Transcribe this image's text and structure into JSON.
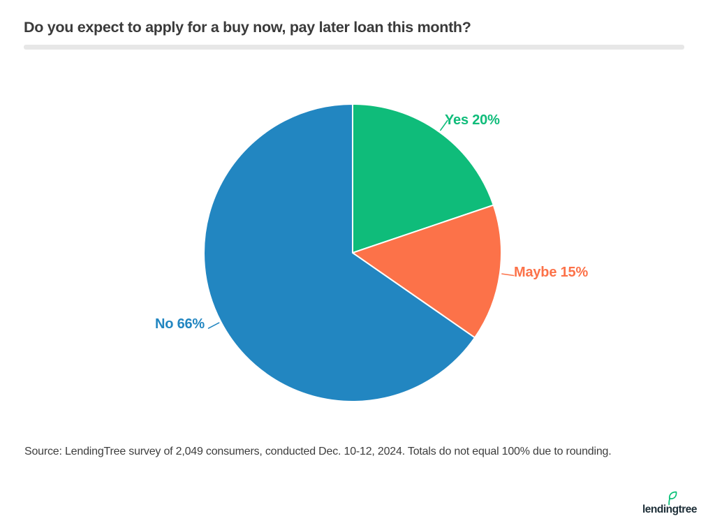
{
  "header": {
    "title": "Do you expect to apply for a buy now, pay later loan this month?"
  },
  "footer": {
    "source_text": "Source: LendingTree survey of 2,049 consumers, conducted Dec. 10-12, 2024. Totals do not equal 100% due to rounding.",
    "logo_text": "lendingtree"
  },
  "colors": {
    "title_text": "#3a3a3a",
    "source_text": "#3d3d3d",
    "divider": "#e7e7e7",
    "slice_separator": "#ffffff",
    "logo_navy": "#1e2f38",
    "leaf_green": "#08c177"
  },
  "chart_data": {
    "type": "pie",
    "title": "Do you expect to apply for a buy now, pay later loan this month?",
    "start_angle_deg": 0,
    "direction": "clockwise",
    "slices": [
      {
        "label": "Yes",
        "value_pct": 20,
        "display_label": "Yes 20%",
        "color": "#0fbc7a"
      },
      {
        "label": "Maybe",
        "value_pct": 15,
        "display_label": "Maybe 15%",
        "color": "#fc7249"
      },
      {
        "label": "No",
        "value_pct": 66,
        "display_label": "No 66%",
        "color": "#2286c1"
      }
    ],
    "legend_position": "labels-outside",
    "note": "Totals do not equal 100% due to rounding."
  }
}
